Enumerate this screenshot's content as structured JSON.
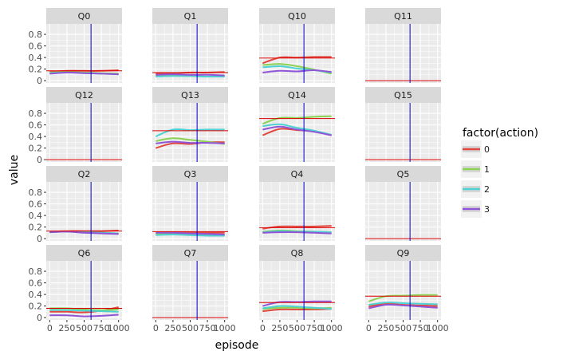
{
  "chart_data": {
    "type": "line",
    "facet_layout": "4x4",
    "xlabel": "episode",
    "ylabel": "value",
    "x_ticks": [
      0,
      250,
      500,
      750,
      1000
    ],
    "x_tick_labels": [
      "0",
      "250",
      "500",
      "750",
      "1000"
    ],
    "xlim": [
      -50,
      1050
    ],
    "y_ticks": [
      0,
      0.2,
      0.4,
      0.6,
      0.8
    ],
    "y_tick_labels": [
      "0",
      "0.2",
      "0.4",
      "0.6",
      "0.8"
    ],
    "ylim": [
      -0.04,
      0.98
    ],
    "vline_x": 600,
    "vline_color": "#0000cc",
    "hline_color": "#dd0000",
    "panel_background": "#ebebeb",
    "grid_color": "#ffffff",
    "strip_background": "#d9d9d9",
    "grid": true,
    "legend_title": "factor(action)",
    "legend_placement": "right",
    "series": [
      {
        "name": "0",
        "color": "#e0473f"
      },
      {
        "name": "1",
        "color": "#8bd152"
      },
      {
        "name": "2",
        "color": "#4fd1d1"
      },
      {
        "name": "3",
        "color": "#9055d6"
      }
    ],
    "x": [
      0,
      250,
      500,
      750,
      1000
    ],
    "panels": [
      {
        "label": "Q0",
        "hline": 0.17,
        "lines": {
          "0": [
            0.15,
            0.17,
            0.17,
            0.17,
            0.18
          ],
          "1": [
            0.14,
            0.15,
            0.14,
            0.13,
            0.12
          ],
          "2": [
            0.13,
            0.14,
            0.13,
            0.12,
            0.11
          ],
          "3": [
            0.12,
            0.14,
            0.13,
            0.12,
            0.11
          ]
        }
      },
      {
        "label": "Q1",
        "hline": 0.14,
        "lines": {
          "0": [
            0.12,
            0.13,
            0.14,
            0.14,
            0.15
          ],
          "1": [
            0.08,
            0.09,
            0.08,
            0.07,
            0.07
          ],
          "2": [
            0.07,
            0.08,
            0.08,
            0.07,
            0.07
          ],
          "3": [
            0.1,
            0.11,
            0.1,
            0.1,
            0.09
          ]
        }
      },
      {
        "label": "Q10",
        "hline": 0.39,
        "lines": {
          "0": [
            0.3,
            0.4,
            0.4,
            0.41,
            0.41
          ],
          "1": [
            0.27,
            0.29,
            0.25,
            0.19,
            0.12
          ],
          "2": [
            0.23,
            0.25,
            0.21,
            0.18,
            0.14
          ],
          "3": [
            0.14,
            0.17,
            0.16,
            0.18,
            0.15
          ]
        }
      },
      {
        "label": "Q11",
        "hline": 0.0,
        "lines": {}
      },
      {
        "label": "Q12",
        "hline": 0.0,
        "lines": {}
      },
      {
        "label": "Q13",
        "hline": 0.5,
        "lines": {
          "0": [
            0.2,
            0.28,
            0.27,
            0.3,
            0.3
          ],
          "1": [
            0.32,
            0.37,
            0.34,
            0.31,
            0.27
          ],
          "2": [
            0.4,
            0.52,
            0.51,
            0.52,
            0.52
          ],
          "3": [
            0.28,
            0.31,
            0.29,
            0.29,
            0.28
          ]
        }
      },
      {
        "label": "Q14",
        "hline": 0.71,
        "lines": {
          "0": [
            0.42,
            0.53,
            0.51,
            0.49,
            0.42
          ],
          "1": [
            0.62,
            0.72,
            0.72,
            0.74,
            0.75
          ],
          "2": [
            0.58,
            0.61,
            0.55,
            0.5,
            0.43
          ],
          "3": [
            0.52,
            0.57,
            0.52,
            0.48,
            0.42
          ]
        }
      },
      {
        "label": "Q15",
        "hline": 0.0,
        "lines": {}
      },
      {
        "label": "Q2",
        "hline": 0.13,
        "lines": {
          "0": [
            0.12,
            0.13,
            0.13,
            0.13,
            0.14
          ],
          "1": [
            0.11,
            0.12,
            0.11,
            0.1,
            0.09
          ],
          "2": [
            0.11,
            0.12,
            0.11,
            0.1,
            0.09
          ],
          "3": [
            0.11,
            0.12,
            0.1,
            0.09,
            0.08
          ]
        }
      },
      {
        "label": "Q3",
        "hline": 0.12,
        "lines": {
          "0": [
            0.1,
            0.11,
            0.1,
            0.1,
            0.1
          ],
          "1": [
            0.08,
            0.08,
            0.07,
            0.06,
            0.05
          ],
          "2": [
            0.06,
            0.07,
            0.06,
            0.05,
            0.05
          ],
          "3": [
            0.1,
            0.1,
            0.09,
            0.08,
            0.07
          ]
        }
      },
      {
        "label": "Q4",
        "hline": 0.19,
        "lines": {
          "0": [
            0.17,
            0.21,
            0.21,
            0.21,
            0.22
          ],
          "1": [
            0.12,
            0.14,
            0.13,
            0.12,
            0.11
          ],
          "2": [
            0.11,
            0.13,
            0.12,
            0.12,
            0.11
          ],
          "3": [
            0.1,
            0.11,
            0.11,
            0.1,
            0.09
          ]
        }
      },
      {
        "label": "Q5",
        "hline": 0.0,
        "lines": {}
      },
      {
        "label": "Q6",
        "hline": 0.16,
        "lines": {
          "0": [
            0.1,
            0.1,
            0.09,
            0.12,
            0.18
          ],
          "1": [
            0.16,
            0.16,
            0.14,
            0.13,
            0.14
          ],
          "2": [
            0.13,
            0.13,
            0.12,
            0.11,
            0.1
          ],
          "3": [
            0.04,
            0.04,
            0.02,
            0.03,
            0.05
          ]
        }
      },
      {
        "label": "Q7",
        "hline": 0.0,
        "lines": {}
      },
      {
        "label": "Q8",
        "hline": 0.26,
        "lines": {
          "0": [
            0.11,
            0.14,
            0.14,
            0.14,
            0.15
          ],
          "1": [
            0.15,
            0.17,
            0.17,
            0.16,
            0.17
          ],
          "2": [
            0.16,
            0.2,
            0.19,
            0.17,
            0.15
          ],
          "3": [
            0.2,
            0.27,
            0.27,
            0.28,
            0.28
          ]
        }
      },
      {
        "label": "Q9",
        "hline": 0.37,
        "lines": {
          "0": [
            0.19,
            0.24,
            0.22,
            0.21,
            0.2
          ],
          "1": [
            0.28,
            0.37,
            0.38,
            0.39,
            0.39
          ],
          "2": [
            0.22,
            0.26,
            0.25,
            0.24,
            0.23
          ],
          "3": [
            0.16,
            0.22,
            0.21,
            0.19,
            0.17
          ]
        }
      }
    ]
  }
}
